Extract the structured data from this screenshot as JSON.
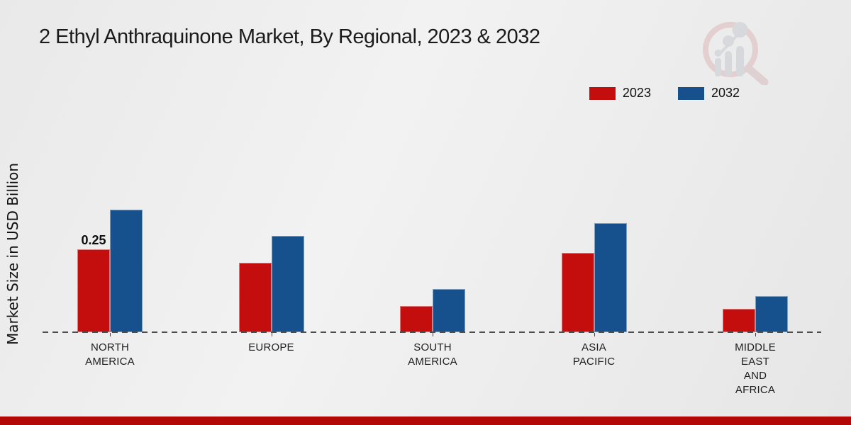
{
  "title": "2 Ethyl Anthraquinone Market, By Regional, 2023 & 2032",
  "y_axis_label": "Market Size in USD Billion",
  "legend": {
    "items": [
      {
        "label": "2023",
        "color": "#c40e0e"
      },
      {
        "label": "2032",
        "color": "#16508d"
      }
    ]
  },
  "colors": {
    "series_2023": "#c40e0e",
    "series_2032": "#16508d",
    "footer_band": "#b30808",
    "axis_dash": "#4d4d4d"
  },
  "chart_data": {
    "type": "bar",
    "categories": [
      "NORTH AMERICA",
      "EUROPE",
      "SOUTH AMERICA",
      "ASIA PACIFIC",
      "MIDDLE EAST AND AFRICA"
    ],
    "series": [
      {
        "name": "2023",
        "color": "#c40e0e",
        "values": [
          0.25,
          0.21,
          0.08,
          0.24,
          0.07
        ]
      },
      {
        "name": "2032",
        "color": "#16508d",
        "values": [
          0.37,
          0.29,
          0.13,
          0.33,
          0.11
        ]
      }
    ],
    "title": "2 Ethyl Anthraquinone Market, By Regional, 2023 & 2032",
    "xlabel": "",
    "ylabel": "Market Size in USD Billion",
    "ylim": [
      0,
      0.4
    ],
    "grid": false,
    "legend_position": "top-right",
    "x_axis_style": "dashed",
    "data_labels": [
      {
        "series": "2023",
        "category_index": 0,
        "text": "0.25"
      }
    ]
  }
}
